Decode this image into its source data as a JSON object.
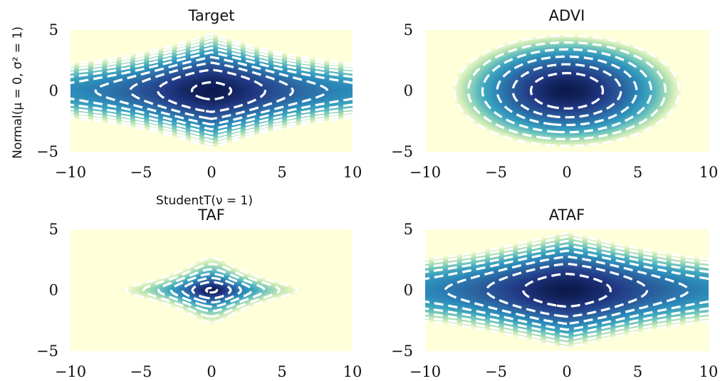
{
  "figure": {
    "xlabel": "StudentT(ν = 1)",
    "ylabel": "Normal(μ = 0, σ² = 1)"
  },
  "colormap": [
    "#0c1a4e",
    "#223a86",
    "#2b5f9e",
    "#2b86b8",
    "#3ea7bf",
    "#7fcdbb",
    "#c7e9b4",
    "#ffffd9"
  ],
  "contour_color": "#ffffff",
  "chart_data": [
    {
      "type": "heatmap",
      "title": "Target",
      "density": "target",
      "xlim": [
        -10,
        10
      ],
      "ylim": [
        -5,
        5
      ],
      "xticks": [
        "−10",
        "−5",
        "0",
        "5",
        "10"
      ],
      "yticks": [
        "−5",
        "0",
        "5"
      ],
      "contour_levels": [
        0.3,
        1.8,
        3.2,
        4.6,
        6.0,
        7.4,
        8.8,
        10.2,
        11.6,
        13.0
      ],
      "grid": false
    },
    {
      "type": "heatmap",
      "title": "ADVI",
      "density": "advi",
      "xlim": [
        -10,
        10
      ],
      "ylim": [
        -5,
        5
      ],
      "xticks": [
        "−10",
        "−5",
        "0",
        "5",
        "10"
      ],
      "yticks": [
        "−5",
        "0",
        "5"
      ],
      "contour_levels": [
        0.4,
        0.9,
        1.5,
        2.2,
        3.0,
        3.9
      ],
      "grid": false
    },
    {
      "type": "heatmap",
      "title": "TAF",
      "density": "taf",
      "xlim": [
        -10,
        10
      ],
      "ylim": [
        -5,
        5
      ],
      "xticks": [
        "−10",
        "−5",
        "0",
        "5",
        "10"
      ],
      "yticks": [
        "−5",
        "0",
        "5"
      ],
      "contour_levels": [
        0.15,
        1.4,
        2.6,
        3.8,
        5.0,
        6.2,
        7.4
      ],
      "grid": false
    },
    {
      "type": "heatmap",
      "title": "ATAF",
      "density": "ataf",
      "xlim": [
        -10,
        10
      ],
      "ylim": [
        -5,
        5
      ],
      "xticks": [
        "−10",
        "−5",
        "0",
        "5",
        "10"
      ],
      "yticks": [
        "−5",
        "0",
        "5"
      ],
      "contour_levels": [
        1.0,
        2.6,
        4.2,
        5.8,
        7.4,
        9.0,
        10.6,
        12.2
      ],
      "grid": false
    }
  ]
}
